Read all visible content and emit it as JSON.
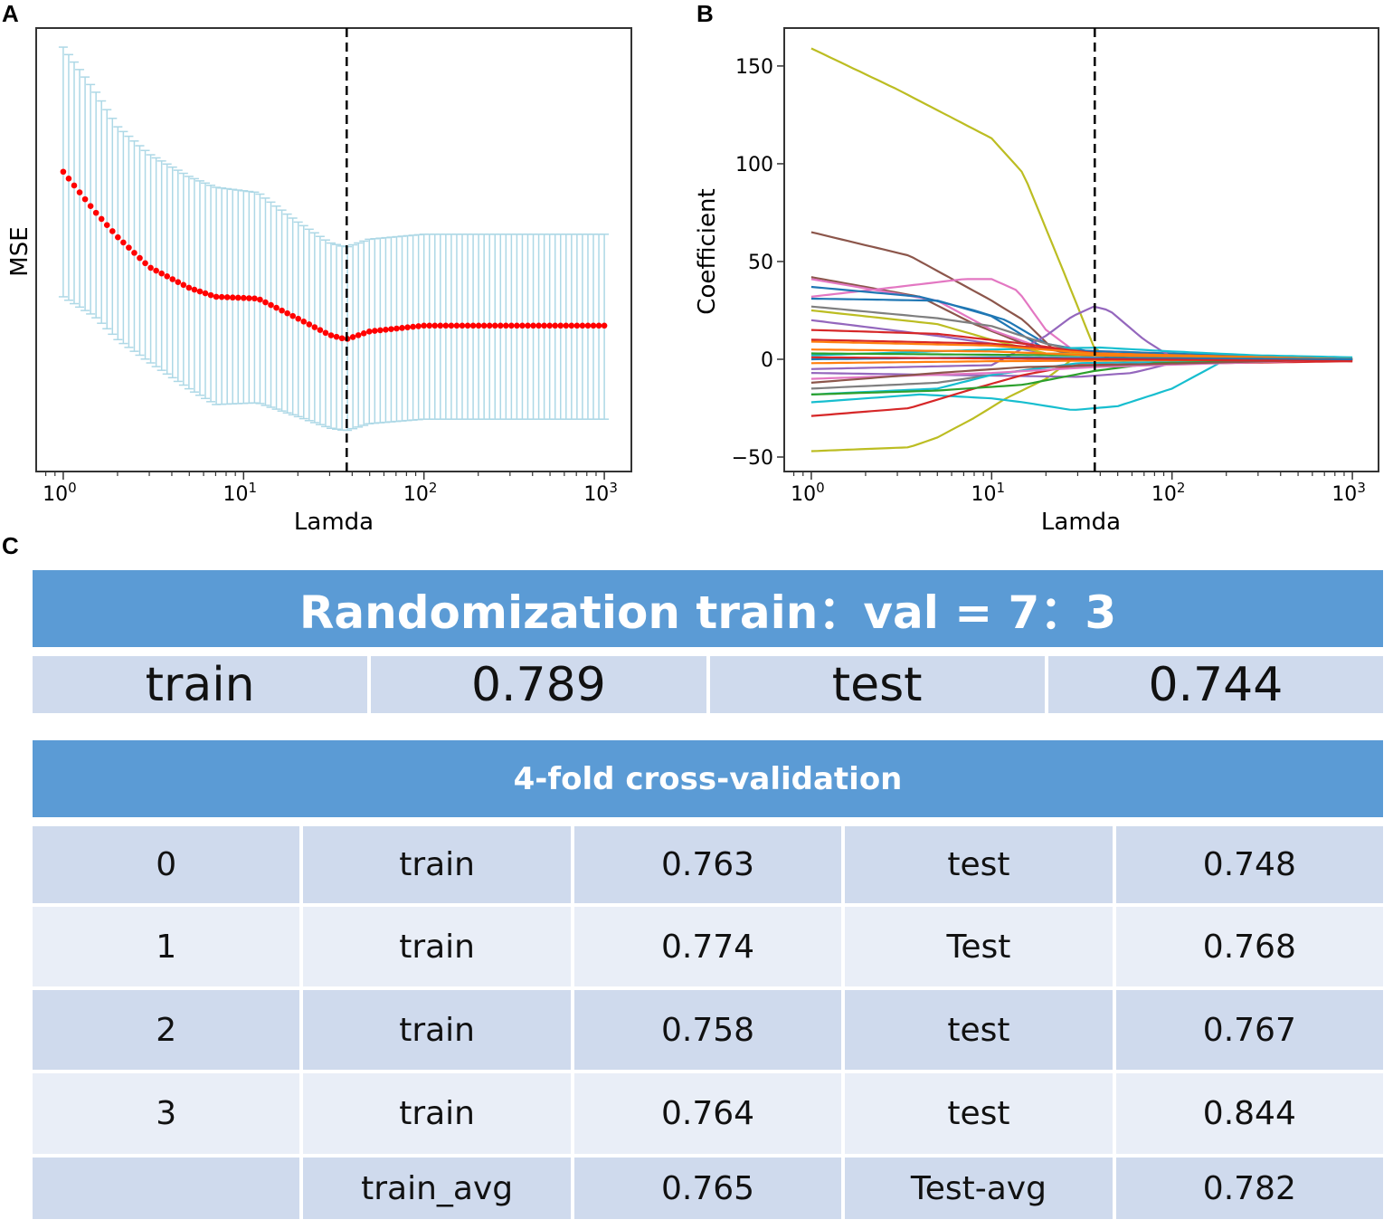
{
  "panel_labels": {
    "a": "A",
    "b": "B",
    "c": "C"
  },
  "chart_data": [
    {
      "type": "scatter",
      "panel": "A",
      "xlabel": "Lamda",
      "ylabel": "MSE",
      "xscale": "log",
      "xlim_log10": [
        -0.15,
        3.15
      ],
      "ylim": [
        0,
        1
      ],
      "y_units": "relative (no tick labels shown)",
      "x_ticks": [
        {
          "base": "10",
          "exp": "0"
        },
        {
          "base": "10",
          "exp": "1"
        },
        {
          "base": "10",
          "exp": "2"
        },
        {
          "base": "10",
          "exp": "3"
        }
      ],
      "n_points": 100,
      "series_color": "#ff0000",
      "errorbar_color": "#add8e6",
      "control_points": [
        {
          "lambda": 1,
          "mean": 0.676,
          "lower": 0.394,
          "upper": 0.957
        },
        {
          "lambda": 1.5,
          "mean": 0.586,
          "lower": 0.349,
          "upper": 0.859
        },
        {
          "lambda": 2,
          "mean": 0.529,
          "lower": 0.298,
          "upper": 0.778
        },
        {
          "lambda": 3,
          "mean": 0.461,
          "lower": 0.247,
          "upper": 0.716
        },
        {
          "lambda": 5,
          "mean": 0.414,
          "lower": 0.186,
          "upper": 0.665
        },
        {
          "lambda": 7,
          "mean": 0.394,
          "lower": 0.151,
          "upper": 0.641
        },
        {
          "lambda": 12,
          "mean": 0.39,
          "lower": 0.155,
          "upper": 0.629
        },
        {
          "lambda": 20,
          "mean": 0.345,
          "lower": 0.124,
          "upper": 0.563
        },
        {
          "lambda": 30,
          "mean": 0.308,
          "lower": 0.098,
          "upper": 0.516
        },
        {
          "lambda": 37,
          "mean": 0.298,
          "lower": 0.092,
          "upper": 0.506
        },
        {
          "lambda": 50,
          "mean": 0.316,
          "lower": 0.108,
          "upper": 0.524
        },
        {
          "lambda": 100,
          "mean": 0.329,
          "lower": 0.118,
          "upper": 0.535
        },
        {
          "lambda": 1000,
          "mean": 0.329,
          "lower": 0.118,
          "upper": 0.535
        }
      ],
      "vline_lambda": 37.3
    },
    {
      "type": "line",
      "panel": "B",
      "xlabel": "Lamda",
      "ylabel": "Coefficient",
      "xscale": "log",
      "xlim_log10": [
        -0.15,
        3.145
      ],
      "ylim": [
        -57.4,
        169.4
      ],
      "y_ticks": [
        "150",
        "100",
        "50",
        "0",
        "−50"
      ],
      "y_tick_values": [
        150,
        100,
        50,
        0,
        -50
      ],
      "x_ticks": [
        {
          "base": "10",
          "exp": "0"
        },
        {
          "base": "10",
          "exp": "1"
        },
        {
          "base": "10",
          "exp": "2"
        },
        {
          "base": "10",
          "exp": "3"
        }
      ],
      "vline_lambda": 37.3,
      "series": [
        {
          "color": "#bcbd22",
          "points": [
            [
              1,
              159
            ],
            [
              3,
              138
            ],
            [
              10,
              113
            ],
            [
              15,
              95
            ],
            [
              25,
              45
            ],
            [
              37,
              6
            ],
            [
              45,
              0
            ],
            [
              1000,
              0
            ]
          ]
        },
        {
          "color": "#bcbd22",
          "points": [
            [
              1,
              -47
            ],
            [
              3.5,
              -45
            ],
            [
              5,
              -40
            ],
            [
              8,
              -30
            ],
            [
              12,
              -20
            ],
            [
              20,
              -10
            ],
            [
              28,
              0
            ],
            [
              1000,
              0
            ]
          ]
        },
        {
          "color": "#8c564b",
          "points": [
            [
              1,
              65
            ],
            [
              3.5,
              53
            ],
            [
              10,
              30
            ],
            [
              15,
              20
            ],
            [
              22,
              5
            ],
            [
              40,
              2
            ],
            [
              1000,
              0
            ]
          ]
        },
        {
          "color": "#8c564b",
          "points": [
            [
              1,
              42
            ],
            [
              4,
              32
            ],
            [
              8,
              18
            ],
            [
              15,
              8
            ],
            [
              30,
              2
            ],
            [
              1000,
              0
            ]
          ]
        },
        {
          "color": "#e377c2",
          "points": [
            [
              1,
              32
            ],
            [
              3,
              37
            ],
            [
              7,
              41
            ],
            [
              10,
              41
            ],
            [
              14,
              35
            ],
            [
              20,
              15
            ],
            [
              30,
              3
            ],
            [
              1000,
              0
            ]
          ]
        },
        {
          "color": "#e377c2",
          "points": [
            [
              1,
              41
            ],
            [
              5,
              30
            ],
            [
              10,
              15
            ],
            [
              20,
              5
            ],
            [
              1000,
              0
            ]
          ]
        },
        {
          "color": "#1f77b4",
          "points": [
            [
              1,
              37
            ],
            [
              4,
              32
            ],
            [
              8,
              25
            ],
            [
              12,
              20
            ],
            [
              20,
              8
            ],
            [
              40,
              3
            ],
            [
              1000,
              0
            ]
          ]
        },
        {
          "color": "#1f77b4",
          "points": [
            [
              1,
              31
            ],
            [
              5,
              30
            ],
            [
              10,
              22
            ],
            [
              20,
              5
            ],
            [
              1000,
              0
            ]
          ]
        },
        {
          "color": "#9467bd",
          "points": [
            [
              1,
              -5
            ],
            [
              10,
              -3
            ],
            [
              20,
              12
            ],
            [
              28,
              22
            ],
            [
              37,
              27
            ],
            [
              45,
              25
            ],
            [
              70,
              10
            ],
            [
              100,
              1
            ],
            [
              1000,
              0
            ]
          ]
        },
        {
          "color": "#9467bd",
          "points": [
            [
              1,
              20
            ],
            [
              5,
              12
            ],
            [
              10,
              8
            ],
            [
              20,
              3
            ],
            [
              1000,
              0
            ]
          ]
        },
        {
          "color": "#9467bd",
          "points": [
            [
              1,
              -7
            ],
            [
              30,
              -9
            ],
            [
              60,
              -7
            ],
            [
              100,
              -2
            ],
            [
              1000,
              0
            ]
          ]
        },
        {
          "color": "#7f7f7f",
          "points": [
            [
              1,
              27
            ],
            [
              5,
              21
            ],
            [
              10,
              17
            ],
            [
              20,
              8
            ],
            [
              40,
              2
            ],
            [
              1000,
              0
            ]
          ]
        },
        {
          "color": "#7f7f7f",
          "points": [
            [
              1,
              -15
            ],
            [
              5,
              -12
            ],
            [
              10,
              -8
            ],
            [
              20,
              -4
            ],
            [
              1000,
              0
            ]
          ]
        },
        {
          "color": "#bcbd22",
          "points": [
            [
              1,
              25
            ],
            [
              5,
              18
            ],
            [
              10,
              10
            ],
            [
              20,
              3
            ],
            [
              1000,
              0
            ]
          ]
        },
        {
          "color": "#17becf",
          "points": [
            [
              1,
              -22
            ],
            [
              4,
              -18
            ],
            [
              10,
              -20
            ],
            [
              15,
              -22
            ],
            [
              28,
              -26
            ],
            [
              50,
              -24
            ],
            [
              100,
              -15
            ],
            [
              200,
              0
            ],
            [
              1000,
              0
            ]
          ]
        },
        {
          "color": "#17becf",
          "points": [
            [
              1,
              2
            ],
            [
              10,
              5
            ],
            [
              40,
              6
            ],
            [
              100,
              4
            ],
            [
              300,
              2
            ],
            [
              1000,
              1
            ]
          ]
        },
        {
          "color": "#17becf",
          "points": [
            [
              1,
              -18
            ],
            [
              5,
              -15
            ],
            [
              10,
              -8
            ],
            [
              30,
              -2
            ],
            [
              1000,
              0
            ]
          ]
        },
        {
          "color": "#d62728",
          "points": [
            [
              1,
              -29
            ],
            [
              3.5,
              -25
            ],
            [
              8,
              -15
            ],
            [
              15,
              -8
            ],
            [
              30,
              -3
            ],
            [
              1000,
              -1
            ]
          ]
        },
        {
          "color": "#d62728",
          "points": [
            [
              1,
              15
            ],
            [
              5,
              13
            ],
            [
              15,
              8
            ],
            [
              37,
              3
            ],
            [
              1000,
              0
            ]
          ]
        },
        {
          "color": "#d62728",
          "points": [
            [
              1,
              10
            ],
            [
              10,
              8
            ],
            [
              40,
              3
            ],
            [
              1000,
              -1
            ]
          ]
        },
        {
          "color": "#2ca02c",
          "points": [
            [
              1,
              -18
            ],
            [
              5,
              -16
            ],
            [
              15,
              -13
            ],
            [
              37,
              -6
            ],
            [
              80,
              -2
            ],
            [
              1000,
              0
            ]
          ]
        },
        {
          "color": "#2ca02c",
          "points": [
            [
              1,
              3
            ],
            [
              30,
              2
            ],
            [
              1000,
              0
            ]
          ]
        },
        {
          "color": "#ff7f0e",
          "points": [
            [
              1,
              9
            ],
            [
              10,
              7
            ],
            [
              37,
              3
            ],
            [
              1000,
              0
            ]
          ]
        },
        {
          "color": "#ff7f0e",
          "points": [
            [
              1,
              5
            ],
            [
              10,
              4
            ],
            [
              37,
              2
            ],
            [
              1000,
              0
            ]
          ]
        },
        {
          "color": "#ff7f0e",
          "points": [
            [
              1,
              -2
            ],
            [
              10,
              -1
            ],
            [
              1000,
              0
            ]
          ]
        },
        {
          "color": "#e377c2",
          "points": [
            [
              1,
              -10
            ],
            [
              10,
              -7
            ],
            [
              37,
              -4
            ],
            [
              1000,
              0
            ]
          ]
        },
        {
          "color": "#8c564b",
          "points": [
            [
              1,
              -12
            ],
            [
              5,
              -7
            ],
            [
              15,
              -4
            ],
            [
              1000,
              0
            ]
          ]
        },
        {
          "color": "#1f77b4",
          "points": [
            [
              1,
              0
            ],
            [
              10,
              1
            ],
            [
              1000,
              0
            ]
          ]
        },
        {
          "color": "#d62728",
          "points": [
            [
              1,
              1
            ],
            [
              50,
              0
            ],
            [
              1000,
              -1
            ]
          ]
        }
      ]
    }
  ],
  "table": {
    "title": "Randomization train：val = 7：3",
    "summary": [
      "train",
      "0.789",
      "test",
      "0.744"
    ],
    "cv_title": "4-fold cross-validation",
    "rows": [
      [
        "0",
        "train",
        "0.763",
        "test",
        "0.748"
      ],
      [
        "1",
        "train",
        "0.774",
        "Test",
        "0.768"
      ],
      [
        "2",
        "train",
        "0.758",
        "test",
        "0.767"
      ],
      [
        "3",
        "train",
        "0.764",
        "test",
        "0.844"
      ],
      [
        "",
        "train_avg",
        "0.765",
        "Test-avg",
        "0.782"
      ]
    ]
  }
}
